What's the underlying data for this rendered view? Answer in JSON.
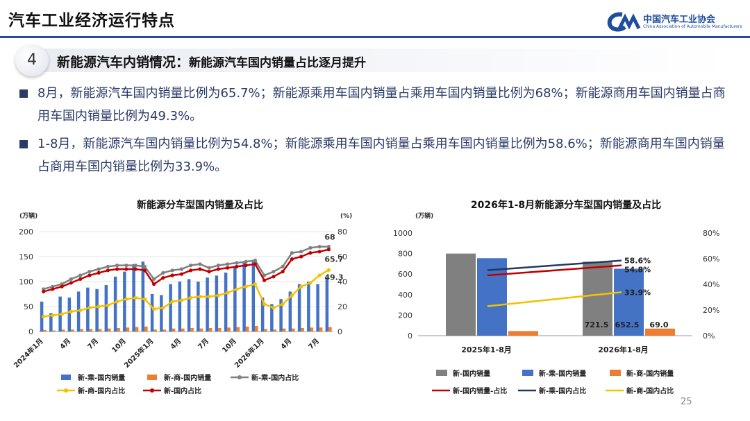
{
  "header": {
    "title": "汽车工业经济运行特点",
    "logo_cn": "中国汽车工业协会",
    "logo_en": "China Association of Automobile Manufacturers",
    "accent_color": "#1f4e9c"
  },
  "section": {
    "number": "4",
    "title": "新能源汽车内销情况：",
    "subtitle": "新能源汽车国内销量占比逐月提升"
  },
  "bullets": [
    "8月，新能源汽车国内销量比例为65.7%；新能源乘用车国内销量占乘用车国内销量比例为68%；新能源商用车国内销量占商用车国内销量比例为49.3%。",
    "1-8月，新能源汽车国内销量比例为54.8%；新能源乘用车国内销量占乘用车国内销量比例为58.6%；新能源商用车国内销量占商用车国内销量比例为33.9%。"
  ],
  "page_number": "25",
  "chart_data": [
    {
      "type": "bar",
      "title": "新能源分车型国内销量及占比",
      "y_left_unit": "(万辆)",
      "y_right_unit": "(%)",
      "ylim": [
        0,
        200
      ],
      "y2lim": [
        0,
        80
      ],
      "y_ticks": [
        "0",
        "50",
        "100",
        "150",
        "200"
      ],
      "y2_ticks": [
        "0",
        "20",
        "40",
        "60",
        "80"
      ],
      "x_tick_labels": [
        "2024年1月",
        "4月",
        "7月",
        "10月",
        "2025年1月",
        "4月",
        "7月",
        "10月",
        "2026年1月",
        "4月",
        "7月"
      ],
      "x_tick_indices": [
        0,
        3,
        6,
        9,
        12,
        15,
        18,
        21,
        24,
        27,
        30
      ],
      "series": [
        {
          "name": "新-乘-国内销量",
          "kind": "bar",
          "axis": "left",
          "color": "#4472c4",
          "values": [
            60,
            37,
            70,
            68,
            80,
            88,
            85,
            93,
            110,
            120,
            135,
            140,
            75,
            73,
            95,
            100,
            105,
            100,
            108,
            112,
            118,
            130,
            138,
            140,
            68,
            55,
            65,
            80,
            95,
            100,
            95,
            108
          ]
        },
        {
          "name": "新-商-国内销量",
          "kind": "bar",
          "axis": "left",
          "color": "#ed7d31",
          "values": [
            3,
            2,
            4,
            4,
            5,
            5,
            5,
            6,
            7,
            8,
            9,
            10,
            4,
            4,
            6,
            6,
            7,
            6,
            7,
            7,
            8,
            9,
            10,
            11,
            5,
            4,
            6,
            6,
            7,
            8,
            8,
            9
          ]
        },
        {
          "name": "新-乘-国内占比",
          "kind": "line",
          "axis": "right",
          "color": "#808080",
          "values": [
            34,
            36,
            38,
            42,
            45,
            48,
            50,
            52,
            53,
            53,
            53,
            52,
            42,
            47,
            49,
            50,
            53,
            54,
            51,
            53,
            54,
            55,
            56,
            57,
            45,
            48,
            52,
            63,
            64,
            67,
            68,
            68
          ]
        },
        {
          "name": "新-商-国内占比",
          "kind": "line",
          "axis": "right",
          "color": "#f2c200",
          "values": [
            12,
            13,
            14,
            16,
            17,
            19,
            20,
            21,
            24,
            26,
            27,
            26,
            18,
            19,
            24,
            25,
            27,
            28,
            28,
            29,
            31,
            34,
            36,
            38,
            22,
            19,
            22,
            29,
            36,
            39,
            45,
            49.3
          ]
        },
        {
          "name": "新-国内占比",
          "kind": "line",
          "axis": "right",
          "color": "#c00000",
          "values": [
            32,
            34,
            36,
            39,
            42,
            45,
            47,
            49,
            50,
            50,
            50,
            49,
            38,
            43,
            45,
            46,
            49,
            50,
            48,
            50,
            51,
            52,
            53,
            54,
            41,
            44,
            48,
            58,
            60,
            63,
            64,
            65.7
          ]
        }
      ],
      "end_labels": [
        "68",
        "65.7",
        "49.3"
      ]
    },
    {
      "type": "bar",
      "title": "2026年1-8月新能源分车型国内销量及占比",
      "y_left_unit": "(万辆)",
      "ylim": [
        0,
        1000
      ],
      "y2lim": [
        0,
        80
      ],
      "y_ticks": [
        "0",
        "200",
        "400",
        "600",
        "800",
        "1000"
      ],
      "y2_ticks": [
        "0%",
        "20%",
        "40%",
        "60%",
        "80%"
      ],
      "categories": [
        "2025年1-8月",
        "2026年1-8月"
      ],
      "series": [
        {
          "name": "新-国内销量",
          "kind": "bar",
          "axis": "left",
          "color": "#808080",
          "values": [
            800,
            721.5
          ]
        },
        {
          "name": "新-乘-国内销量",
          "kind": "bar",
          "axis": "left",
          "color": "#4472c4",
          "values": [
            755,
            652.5
          ]
        },
        {
          "name": "新-商-国内销量",
          "kind": "bar",
          "axis": "left",
          "color": "#ed7d31",
          "values": [
            45,
            69.0
          ]
        },
        {
          "name": "新-国内销量-占比",
          "kind": "line",
          "axis": "right",
          "color": "#c00000",
          "values": [
            47,
            54.8
          ]
        },
        {
          "name": "新-乘-国内占比",
          "kind": "line",
          "axis": "right",
          "color": "#1f3864",
          "values": [
            51,
            58.6
          ]
        },
        {
          "name": "新-商-国内占比",
          "kind": "line",
          "axis": "right",
          "color": "#f2c200",
          "values": [
            23,
            33.9
          ]
        }
      ],
      "bar_value_labels": [
        "721.5",
        "652.5",
        "69.0"
      ],
      "line_value_labels": [
        "58.6%",
        "54.8%",
        "33.9%"
      ]
    }
  ]
}
